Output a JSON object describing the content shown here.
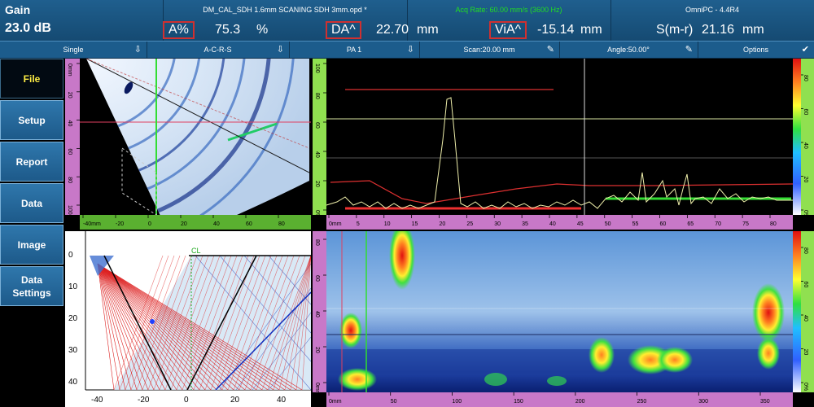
{
  "header": {
    "gain_label": "Gain",
    "gain_value": "23.0 dB",
    "file_title": "DM_CAL_SDH 1.6mm SCANING SDH 3mm.opd *",
    "acq_rate": "Acq Rate: 60.00 mm/s (3600 Hz)",
    "app_version": "OmniPC - 4.4R4",
    "readings": [
      {
        "label": "A%",
        "value": "75.3",
        "unit": "%"
      },
      {
        "label": "DA^",
        "value": "22.70",
        "unit": "mm"
      },
      {
        "label": "ViA^",
        "value": "-15.14",
        "unit": "mm"
      },
      {
        "label": "S(m-r)",
        "value": "21.16",
        "unit": "mm"
      }
    ]
  },
  "toolbar": {
    "items": [
      {
        "label": "Single",
        "icon": "arrow-down-icon"
      },
      {
        "label": "A-C-R-S",
        "icon": "arrow-down-icon"
      },
      {
        "label": "PA 1",
        "icon": "arrow-down-icon"
      },
      {
        "label": "Scan:20.00 mm",
        "icon": "pencil-icon"
      },
      {
        "label": "Angle:50.00°",
        "icon": "pencil-icon"
      },
      {
        "label": "Options",
        "icon": "check-icon"
      }
    ]
  },
  "sidebar": {
    "items": [
      {
        "label": "File",
        "active": true
      },
      {
        "label": "Setup",
        "active": false
      },
      {
        "label": "Report",
        "active": false
      },
      {
        "label": "Data",
        "active": false
      },
      {
        "label": "Image",
        "active": false
      },
      {
        "label": "Data Settings",
        "active": false
      }
    ]
  },
  "sscan": {
    "v_ticks": [
      "0mm",
      "20",
      "40",
      "60",
      "80",
      "100"
    ],
    "h_ticks": [
      "-40mm",
      "-20",
      "0",
      "20",
      "40",
      "60",
      "80"
    ]
  },
  "ascan": {
    "v_ticks": [
      "0%",
      "20",
      "40",
      "60",
      "80",
      "100"
    ],
    "h_ticks": [
      "0mm",
      "5",
      "10",
      "15",
      "20",
      "25",
      "30",
      "35",
      "40",
      "45",
      "50",
      "55",
      "60",
      "65",
      "70",
      "75",
      "80"
    ],
    "right_ticks": [
      "0%",
      "20",
      "40",
      "60",
      "80"
    ]
  },
  "beam_plot": {
    "cl_label": "CL",
    "y_ticks": [
      "0",
      "10",
      "20",
      "30",
      "40"
    ],
    "x_ticks": [
      "-40",
      "-20",
      "0",
      "20",
      "40"
    ]
  },
  "cscan": {
    "v_ticks": [
      "0mm",
      "20",
      "40",
      "60",
      "80"
    ],
    "h_ticks": [
      "0mm",
      "50",
      "100",
      "150",
      "200",
      "250",
      "300",
      "350"
    ],
    "right_ticks": [
      "0%",
      "20",
      "40",
      "60",
      "80"
    ]
  },
  "colors": {
    "header_bg": "#1a5580",
    "acq_green": "#22dd22",
    "reading_box": "#d03030",
    "active_text": "#ffee44",
    "ruler_pink": "#c878c8",
    "ruler_green": "#5ab030"
  }
}
